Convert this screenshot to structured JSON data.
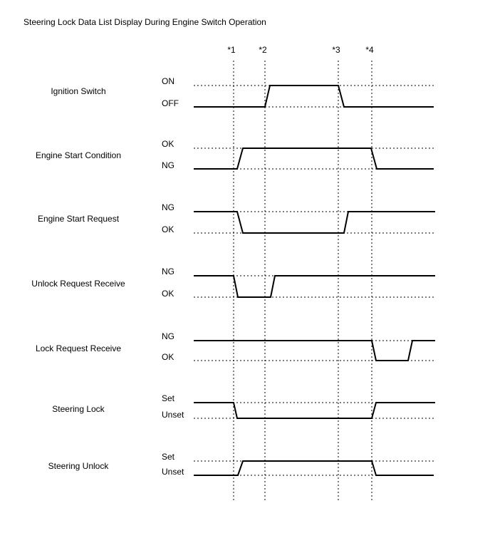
{
  "title": "Steering Lock Data List Display During Engine Switch Operation",
  "markers": [
    "*1",
    "*2",
    "*3",
    "*4"
  ],
  "signals": [
    {
      "name": "Ignition Switch",
      "high": "ON",
      "low": "OFF"
    },
    {
      "name": "Engine Start Condition",
      "high": "OK",
      "low": "NG"
    },
    {
      "name": "Engine Start Request",
      "high": "NG",
      "low": "OK"
    },
    {
      "name": "Unlock Request Receive",
      "high": "NG",
      "low": "OK"
    },
    {
      "name": "Lock Request Receive",
      "high": "NG",
      "low": "OK"
    },
    {
      "name": "Steering Lock",
      "high": "Set",
      "low": "Unset"
    },
    {
      "name": "Steering Unlock",
      "high": "Set",
      "low": "Unset"
    }
  ]
}
